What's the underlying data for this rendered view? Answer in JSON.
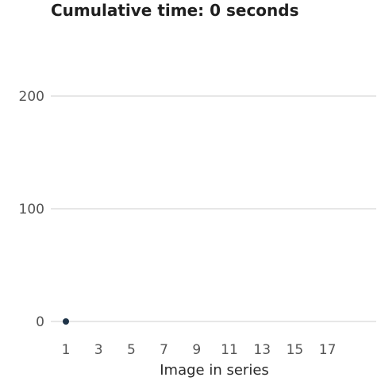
{
  "chart_data": {
    "type": "scatter",
    "title": "Cumulative time: 0 seconds",
    "xlabel": "Image in series",
    "ylabel": "",
    "x_ticks": [
      1,
      3,
      5,
      7,
      9,
      11,
      13,
      15,
      17
    ],
    "y_ticks": [
      0,
      100,
      200
    ],
    "xlim": [
      0,
      20
    ],
    "ylim": [
      -10,
      250
    ],
    "grid": true,
    "series": [
      {
        "x": [
          1
        ],
        "y": [
          0
        ],
        "color": "#1f3448"
      }
    ]
  }
}
